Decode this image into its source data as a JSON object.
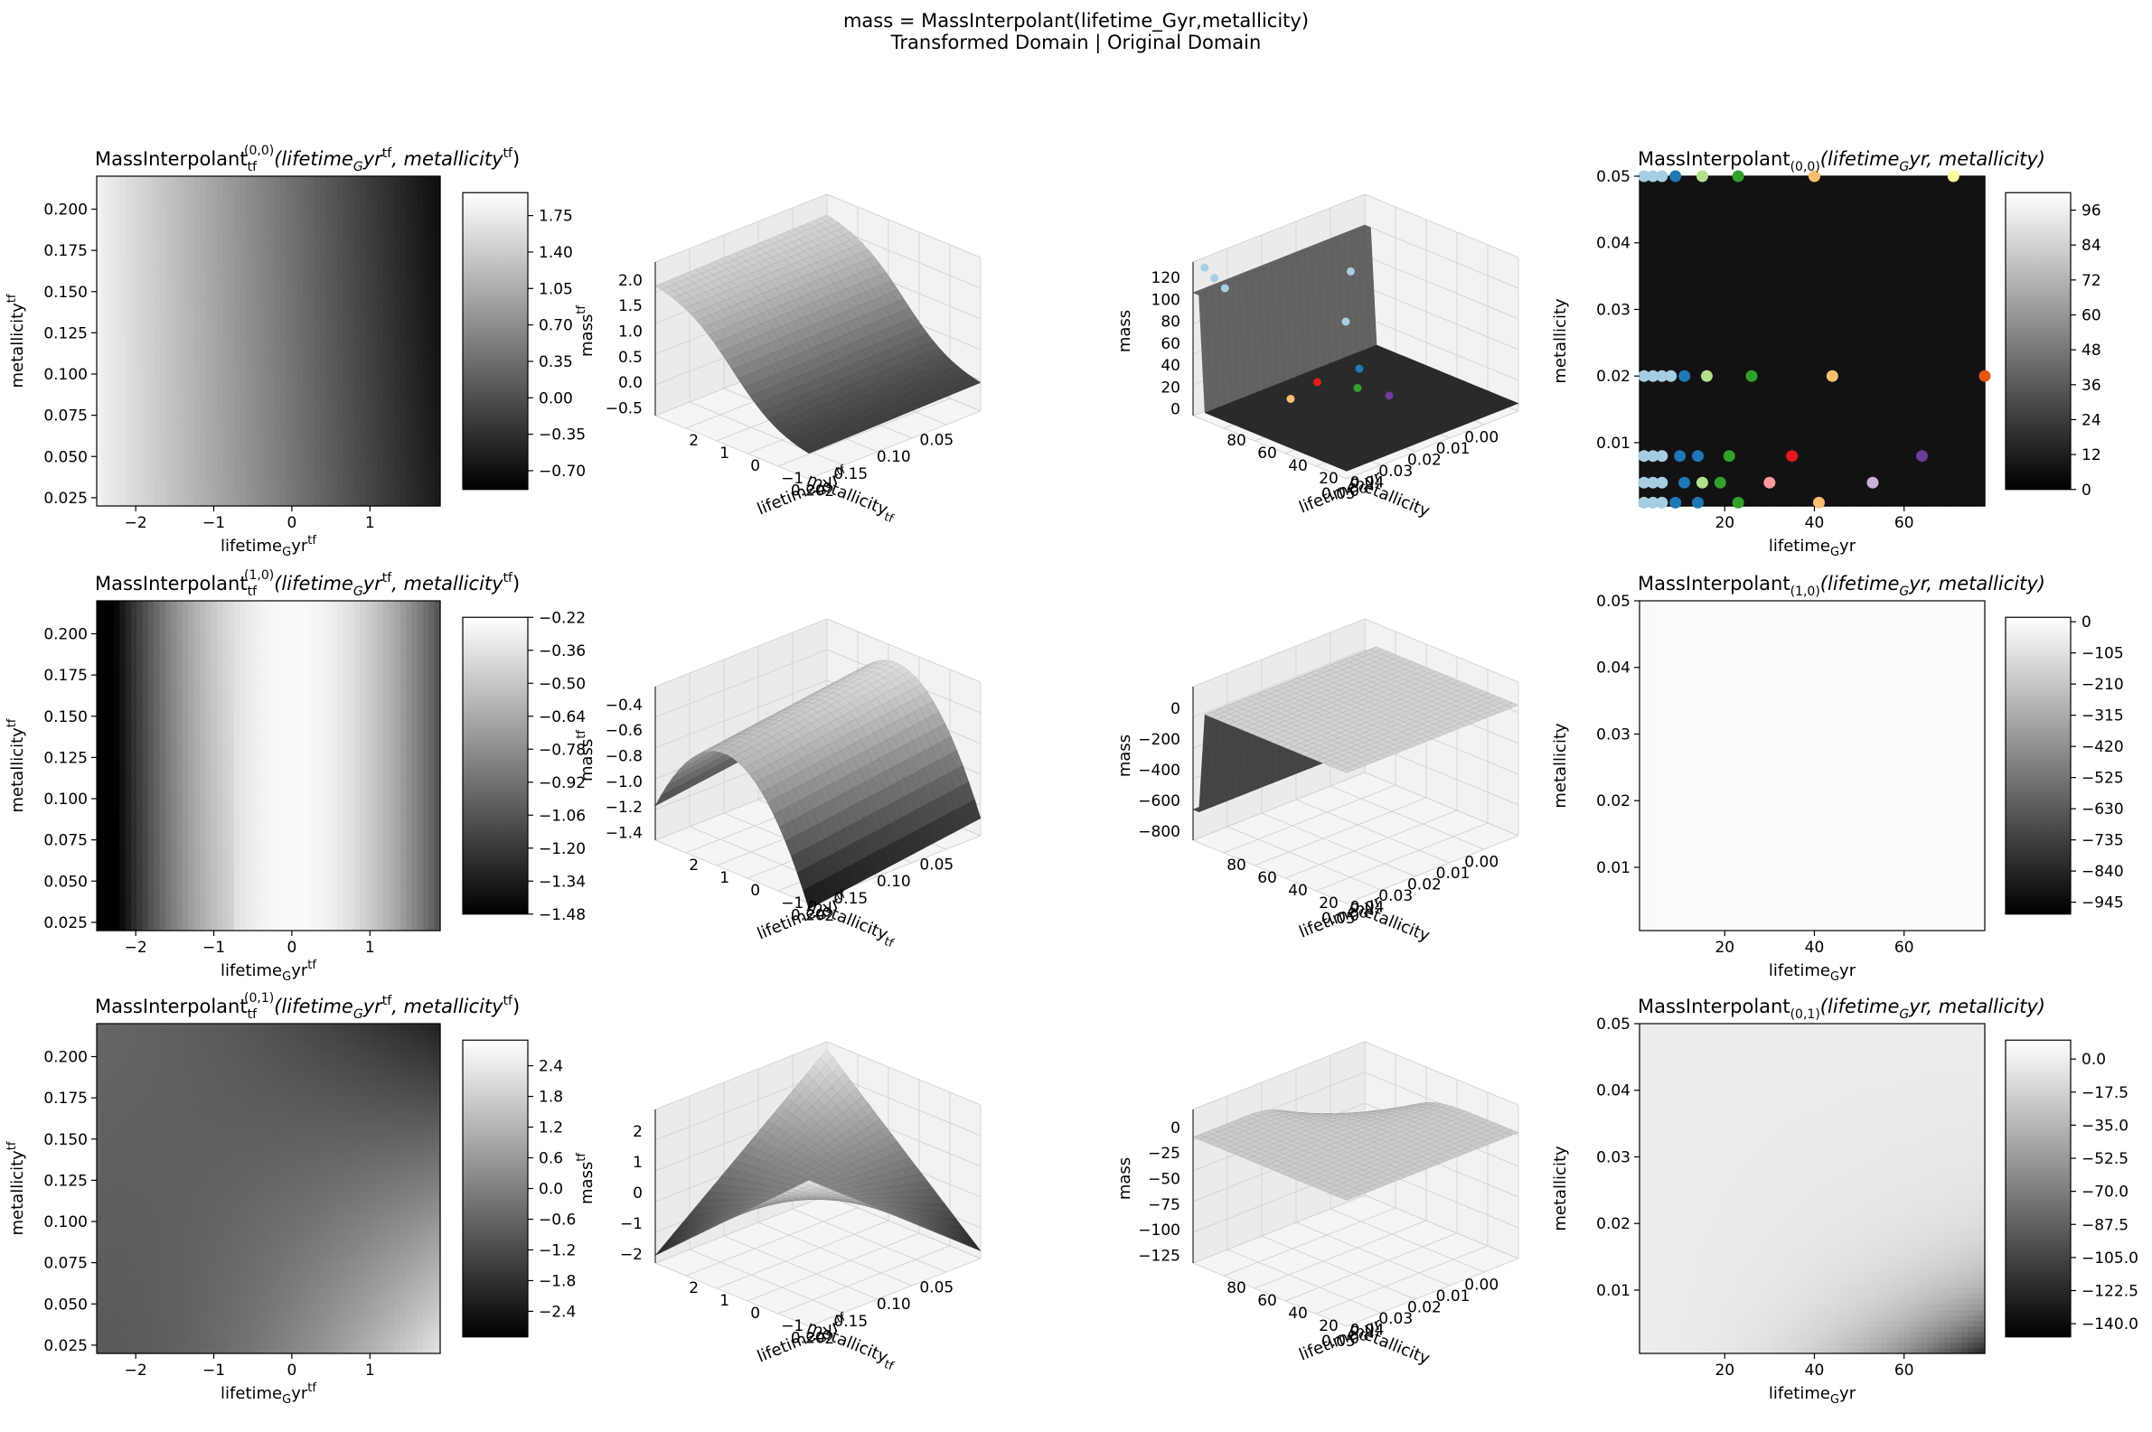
{
  "figure": {
    "suptitle_line1": "mass = MassInterpolant(lifetime_Gyr,metallicity)",
    "suptitle_line2": "Transformed Domain | Original Domain"
  },
  "chart_data": [
    {
      "type": "heatmap",
      "panel": "row0-transformed",
      "title_main": "MassInterpolant",
      "title_sub": "tf",
      "title_sup": "(0,0)",
      "title_args": "(lifetime_Gyr^tf, metallicity^tf)",
      "xlabel": "lifetime_Gyr^tf",
      "ylabel": "metallicity^tf",
      "xticks": [
        "−2",
        "−1",
        "0",
        "1"
      ],
      "yticks": [
        "0.025",
        "0.050",
        "0.075",
        "0.100",
        "0.125",
        "0.150",
        "0.175",
        "0.200"
      ],
      "xlim": [
        -2.5,
        1.9
      ],
      "ylim": [
        0.02,
        0.22
      ],
      "colorbar_ticks": [
        "1.75",
        "1.40",
        "1.05",
        "0.70",
        "0.35",
        "0.00",
        "−0.35",
        "−0.70"
      ],
      "colorbar_range": [
        -0.88,
        1.97
      ],
      "colormap": "gray"
    },
    {
      "type": "surface3d",
      "panel": "row0-transformed-3d",
      "zlabel": "mass^tf",
      "xlabel": "lifetime_Gyr^tf",
      "ylabel": "metallicity_tf",
      "zticks": [
        "−0.5",
        "0.0",
        "0.5",
        "1.0",
        "1.5",
        "2.0"
      ],
      "xticks": [
        "−2",
        "−1",
        "0",
        "1",
        "2"
      ],
      "yticks": [
        "0.05",
        "0.10",
        "0.15",
        "0.20"
      ]
    },
    {
      "type": "surface3d",
      "panel": "row0-original-3d",
      "zlabel": "mass",
      "xlabel": "lifetime_Gyr",
      "ylabel": "metallicity",
      "zticks": [
        "0",
        "20",
        "40",
        "60",
        "80",
        "100",
        "120"
      ],
      "xticks": [
        "0",
        "20",
        "40",
        "60",
        "80"
      ],
      "yticks": [
        "0.00",
        "0.01",
        "0.02",
        "0.03",
        "0.04",
        "0.05"
      ]
    },
    {
      "type": "heatmap",
      "panel": "row0-original",
      "title_main": "MassInterpolant",
      "title_sub": "(0,0)",
      "title_args": "(lifetime_Gyr, metallicity)",
      "xlabel": "lifetime_Gyr",
      "ylabel": "metallicity",
      "xticks": [
        "20",
        "40",
        "60"
      ],
      "yticks": [
        "0.01",
        "0.02",
        "0.03",
        "0.04",
        "0.05"
      ],
      "xlim": [
        1,
        78
      ],
      "ylim": [
        0.0005,
        0.05
      ],
      "colorbar_ticks": [
        "96",
        "84",
        "72",
        "60",
        "48",
        "36",
        "24",
        "12",
        "0"
      ],
      "colorbar_range": [
        0,
        102
      ],
      "colormap": "gray",
      "scatter_points": [
        {
          "x": 2,
          "y": 0.05,
          "c": "#a6cee3"
        },
        {
          "x": 4,
          "y": 0.05,
          "c": "#a6cee3"
        },
        {
          "x": 6,
          "y": 0.05,
          "c": "#a6cee3"
        },
        {
          "x": 9,
          "y": 0.05,
          "c": "#1f78b4"
        },
        {
          "x": 15,
          "y": 0.05,
          "c": "#b2df8a"
        },
        {
          "x": 23,
          "y": 0.05,
          "c": "#33a02c"
        },
        {
          "x": 40,
          "y": 0.05,
          "c": "#fdbf6f"
        },
        {
          "x": 71,
          "y": 0.05,
          "c": "#ffff99"
        },
        {
          "x": 2,
          "y": 0.02,
          "c": "#a6cee3"
        },
        {
          "x": 4,
          "y": 0.02,
          "c": "#a6cee3"
        },
        {
          "x": 6,
          "y": 0.02,
          "c": "#a6cee3"
        },
        {
          "x": 8,
          "y": 0.02,
          "c": "#a6cee3"
        },
        {
          "x": 11,
          "y": 0.02,
          "c": "#1f78b4"
        },
        {
          "x": 16,
          "y": 0.02,
          "c": "#b2df8a"
        },
        {
          "x": 26,
          "y": 0.02,
          "c": "#33a02c"
        },
        {
          "x": 44,
          "y": 0.02,
          "c": "#fdbf6f"
        },
        {
          "x": 78,
          "y": 0.02,
          "c": "#e6550d"
        },
        {
          "x": 2,
          "y": 0.008,
          "c": "#a6cee3"
        },
        {
          "x": 4,
          "y": 0.008,
          "c": "#a6cee3"
        },
        {
          "x": 6,
          "y": 0.008,
          "c": "#a6cee3"
        },
        {
          "x": 10,
          "y": 0.008,
          "c": "#1f78b4"
        },
        {
          "x": 14,
          "y": 0.008,
          "c": "#1f78b4"
        },
        {
          "x": 21,
          "y": 0.008,
          "c": "#33a02c"
        },
        {
          "x": 35,
          "y": 0.008,
          "c": "#e31a1c"
        },
        {
          "x": 64,
          "y": 0.008,
          "c": "#6a3d9a"
        },
        {
          "x": 2,
          "y": 0.004,
          "c": "#a6cee3"
        },
        {
          "x": 4,
          "y": 0.004,
          "c": "#a6cee3"
        },
        {
          "x": 6,
          "y": 0.004,
          "c": "#a6cee3"
        },
        {
          "x": 11,
          "y": 0.004,
          "c": "#1f78b4"
        },
        {
          "x": 15,
          "y": 0.004,
          "c": "#b2df8a"
        },
        {
          "x": 19,
          "y": 0.004,
          "c": "#33a02c"
        },
        {
          "x": 30,
          "y": 0.004,
          "c": "#fb9a99"
        },
        {
          "x": 53,
          "y": 0.004,
          "c": "#cab2d6"
        },
        {
          "x": 2,
          "y": 0.001,
          "c": "#a6cee3"
        },
        {
          "x": 4,
          "y": 0.001,
          "c": "#a6cee3"
        },
        {
          "x": 6,
          "y": 0.001,
          "c": "#a6cee3"
        },
        {
          "x": 9,
          "y": 0.001,
          "c": "#1f78b4"
        },
        {
          "x": 14,
          "y": 0.001,
          "c": "#1f78b4"
        },
        {
          "x": 23,
          "y": 0.001,
          "c": "#33a02c"
        },
        {
          "x": 41,
          "y": 0.001,
          "c": "#fdbf6f"
        }
      ]
    },
    {
      "type": "heatmap",
      "panel": "row1-transformed",
      "title_main": "MassInterpolant",
      "title_sub": "tf",
      "title_sup": "(1,0)",
      "title_args": "(lifetime_Gyr^tf, metallicity^tf)",
      "xlabel": "lifetime_Gyr^tf",
      "ylabel": "metallicity^tf",
      "xticks": [
        "−2",
        "−1",
        "0",
        "1"
      ],
      "yticks": [
        "0.025",
        "0.050",
        "0.075",
        "0.100",
        "0.125",
        "0.150",
        "0.175",
        "0.200"
      ],
      "xlim": [
        -2.5,
        1.9
      ],
      "ylim": [
        0.02,
        0.22
      ],
      "colorbar_ticks": [
        "−0.22",
        "−0.36",
        "−0.50",
        "−0.64",
        "−0.78",
        "−0.92",
        "−1.06",
        "−1.20",
        "−1.34",
        "−1.48"
      ],
      "colorbar_range": [
        -1.48,
        -0.22
      ],
      "colormap": "gray"
    },
    {
      "type": "surface3d",
      "panel": "row1-transformed-3d",
      "zlabel": "mass^tf",
      "xlabel": "lifetime_Gyr^tf",
      "ylabel": "metallicity_tf",
      "zticks": [
        "−1.4",
        "−1.2",
        "−1.0",
        "−0.8",
        "−0.6",
        "−0.4"
      ],
      "xticks": [
        "−2",
        "−1",
        "0",
        "1",
        "2"
      ],
      "yticks": [
        "0.05",
        "0.10",
        "0.15",
        "0.20"
      ]
    },
    {
      "type": "surface3d",
      "panel": "row1-original-3d",
      "zlabel": "mass",
      "xlabel": "lifetime_Gyr",
      "ylabel": "metallicity",
      "zticks": [
        "−800",
        "−600",
        "−400",
        "−200",
        "0"
      ],
      "xticks": [
        "0",
        "20",
        "40",
        "60",
        "80"
      ],
      "yticks": [
        "0.00",
        "0.01",
        "0.02",
        "0.03",
        "0.04",
        "0.05"
      ]
    },
    {
      "type": "heatmap",
      "panel": "row1-original",
      "title_main": "MassInterpolant",
      "title_sub": "(1,0)",
      "title_args": "(lifetime_Gyr, metallicity)",
      "xlabel": "lifetime_Gyr",
      "ylabel": "metallicity",
      "xticks": [
        "20",
        "40",
        "60"
      ],
      "yticks": [
        "0.01",
        "0.02",
        "0.03",
        "0.04",
        "0.05"
      ],
      "xlim": [
        1,
        78
      ],
      "ylim": [
        0.0005,
        0.05
      ],
      "colorbar_ticks": [
        "0",
        "−105",
        "−210",
        "−315",
        "−420",
        "−525",
        "−630",
        "−735",
        "−840",
        "−945"
      ],
      "colorbar_range": [
        -985,
        15
      ],
      "colormap": "gray"
    },
    {
      "type": "heatmap",
      "panel": "row2-transformed",
      "title_main": "MassInterpolant",
      "title_sub": "tf",
      "title_sup": "(0,1)",
      "title_args": "(lifetime_Gyr^tf, metallicity^tf)",
      "xlabel": "lifetime_Gyr^tf",
      "ylabel": "metallicity^tf",
      "xticks": [
        "−2",
        "−1",
        "0",
        "1"
      ],
      "yticks": [
        "0.025",
        "0.050",
        "0.075",
        "0.100",
        "0.125",
        "0.150",
        "0.175",
        "0.200"
      ],
      "xlim": [
        -2.5,
        1.9
      ],
      "ylim": [
        0.02,
        0.22
      ],
      "colorbar_ticks": [
        "2.4",
        "1.8",
        "1.2",
        "0.6",
        "0.0",
        "−0.6",
        "−1.2",
        "−1.8",
        "−2.4"
      ],
      "colorbar_range": [
        -2.9,
        2.9
      ],
      "colormap": "gray"
    },
    {
      "type": "surface3d",
      "panel": "row2-transformed-3d",
      "zlabel": "mass^tf",
      "xlabel": "lifetime_Gyr^tf",
      "ylabel": "metallicity_tf",
      "zticks": [
        "−2",
        "−1",
        "0",
        "1",
        "2"
      ],
      "xticks": [
        "−2",
        "−1",
        "0",
        "1",
        "2"
      ],
      "yticks": [
        "0.05",
        "0.10",
        "0.15",
        "0.20"
      ]
    },
    {
      "type": "surface3d",
      "panel": "row2-original-3d",
      "zlabel": "mass",
      "xlabel": "lifetime_Gyr",
      "ylabel": "metallicity",
      "zticks": [
        "−125",
        "−100",
        "−75",
        "−50",
        "−25",
        "0"
      ],
      "xticks": [
        "0",
        "20",
        "40",
        "60",
        "80"
      ],
      "yticks": [
        "0.00",
        "0.01",
        "0.02",
        "0.03",
        "0.04",
        "0.05"
      ]
    },
    {
      "type": "heatmap",
      "panel": "row2-original",
      "title_main": "MassInterpolant",
      "title_sub": "(0,1)",
      "title_args": "(lifetime_Gyr, metallicity)",
      "xlabel": "lifetime_Gyr",
      "ylabel": "metallicity",
      "xticks": [
        "20",
        "40",
        "60"
      ],
      "yticks": [
        "0.01",
        "0.02",
        "0.03",
        "0.04",
        "0.05"
      ],
      "xlim": [
        1,
        78
      ],
      "ylim": [
        0.0005,
        0.05
      ],
      "colorbar_ticks": [
        "0.0",
        "−17.5",
        "−35.0",
        "−52.5",
        "−70.0",
        "−87.5",
        "−105.0",
        "−122.5",
        "−140.0"
      ],
      "colorbar_range": [
        -147,
        10
      ],
      "colormap": "gray"
    }
  ]
}
